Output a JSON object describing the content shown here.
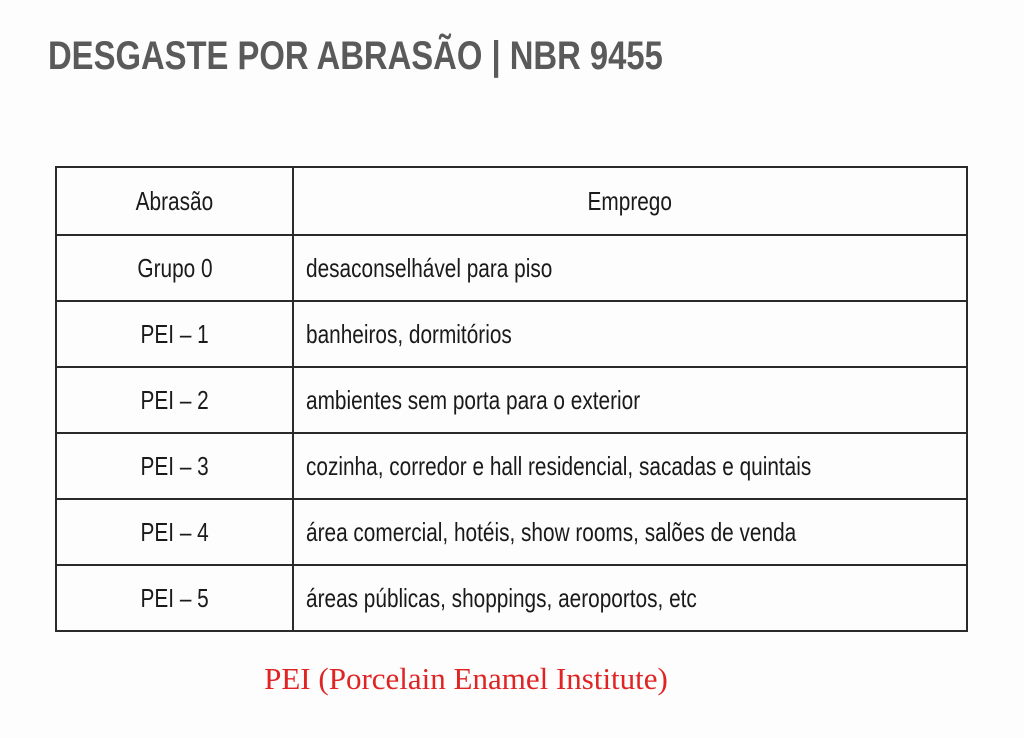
{
  "title": "DESGASTE POR ABRASÃO | NBR 9455",
  "table": {
    "headers": [
      "Abrasão",
      "Emprego"
    ],
    "rows": [
      [
        "Grupo 0",
        "desaconselhável para piso"
      ],
      [
        "PEI – 1",
        "banheiros, dormitórios"
      ],
      [
        "PEI – 2",
        "ambientes sem porta para o exterior"
      ],
      [
        "PEI – 3",
        "cozinha, corredor e hall residencial, sacadas e quintais"
      ],
      [
        "PEI – 4",
        "área comercial, hotéis, show rooms, salões de venda"
      ],
      [
        "PEI – 5",
        "áreas públicas, shoppings, aeroportos, etc"
      ]
    ]
  },
  "footnote": "PEI (Porcelain Enamel Institute)",
  "colors": {
    "title": "#5a5a5a",
    "footnote": "#e02424",
    "border": "#2a2a2a"
  }
}
